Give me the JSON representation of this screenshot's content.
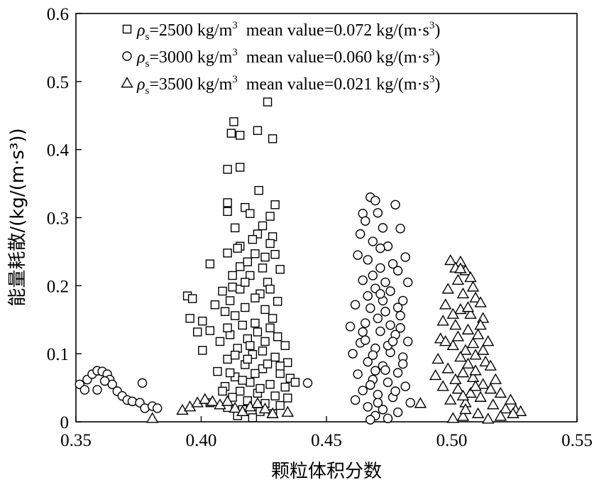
{
  "chart_data": {
    "type": "scatter",
    "xlabel": "颗粒体积分数",
    "ylabel": "能量耗散/(kg/(m·s³))",
    "xlim": [
      0.35,
      0.55
    ],
    "ylim": [
      0,
      0.6
    ],
    "x_ticks": [
      "0.35",
      "0.40",
      "0.45",
      "0.50",
      "0.55"
    ],
    "y_ticks": [
      "0",
      "0.1",
      "0.2",
      "0.3",
      "0.4",
      "0.5",
      "0.6"
    ],
    "grid": false,
    "legend_position": "top",
    "legend": [
      {
        "symbol": "square",
        "rho": "ρ",
        "sub": "s",
        "text": "=2500 kg/m",
        "sup": "3",
        "mean": "mean value=0.072 kg/(m·s",
        "mean_sup": "3",
        "close": ")"
      },
      {
        "symbol": "circle",
        "rho": "ρ",
        "sub": "s",
        "text": "=3000 kg/m",
        "sup": "3",
        "mean": "mean value=0.060 kg/(m·s",
        "mean_sup": "3",
        "close": ")"
      },
      {
        "symbol": "triangle",
        "rho": "ρ",
        "sub": "s",
        "text": "=3500 kg/m",
        "sup": "3",
        "mean": "mean value=0.021 kg/(m·s",
        "mean_sup": "3",
        "close": ")"
      }
    ],
    "series": [
      {
        "name": "ρs=2500 kg/m3",
        "marker": "square",
        "points": [
          [
            0.4265,
            0.47
          ],
          [
            0.413,
            0.441
          ],
          [
            0.4225,
            0.428
          ],
          [
            0.4285,
            0.416
          ],
          [
            0.412,
            0.424
          ],
          [
            0.4155,
            0.421
          ],
          [
            0.4155,
            0.374
          ],
          [
            0.4105,
            0.371
          ],
          [
            0.423,
            0.34
          ],
          [
            0.4105,
            0.322
          ],
          [
            0.4295,
            0.319
          ],
          [
            0.4175,
            0.315
          ],
          [
            0.4275,
            0.302
          ],
          [
            0.4105,
            0.309
          ],
          [
            0.4195,
            0.306
          ],
          [
            0.4245,
            0.288
          ],
          [
            0.4135,
            0.285
          ],
          [
            0.4225,
            0.276
          ],
          [
            0.4285,
            0.272
          ],
          [
            0.4275,
            0.262
          ],
          [
            0.4155,
            0.258
          ],
          [
            0.4105,
            0.248
          ],
          [
            0.4215,
            0.247
          ],
          [
            0.4295,
            0.246
          ],
          [
            0.4035,
            0.232
          ],
          [
            0.4315,
            0.224
          ],
          [
            0.3945,
            0.185
          ],
          [
            0.3965,
            0.181
          ],
          [
            0.4155,
            0.228
          ],
          [
            0.4195,
            0.215
          ],
          [
            0.4265,
            0.205
          ],
          [
            0.4125,
            0.198
          ],
          [
            0.4085,
            0.192
          ],
          [
            0.4235,
            0.188
          ],
          [
            0.4305,
            0.177
          ],
          [
            0.4055,
            0.172
          ],
          [
            0.4175,
            0.168
          ],
          [
            0.3955,
            0.152
          ],
          [
            0.4005,
            0.148
          ],
          [
            0.4135,
            0.156
          ],
          [
            0.4215,
            0.145
          ],
          [
            0.4275,
            0.138
          ],
          [
            0.4035,
            0.134
          ],
          [
            0.3985,
            0.132
          ],
          [
            0.4115,
            0.128
          ],
          [
            0.4185,
            0.122
          ],
          [
            0.4255,
            0.118
          ],
          [
            0.4335,
            0.112
          ],
          [
            0.4075,
            0.118
          ],
          [
            0.4005,
            0.105
          ],
          [
            0.4145,
            0.108
          ],
          [
            0.4205,
            0.099
          ],
          [
            0.4295,
            0.095
          ],
          [
            0.4345,
            0.087
          ],
          [
            0.4105,
            0.092
          ],
          [
            0.4175,
            0.084
          ],
          [
            0.4245,
            0.078
          ],
          [
            0.4315,
            0.071
          ],
          [
            0.4065,
            0.074
          ],
          [
            0.4355,
            0.064
          ],
          [
            0.4135,
            0.066
          ],
          [
            0.4195,
            0.058
          ],
          [
            0.4275,
            0.055
          ],
          [
            0.4335,
            0.051
          ],
          [
            0.4095,
            0.052
          ],
          [
            0.4155,
            0.045
          ],
          [
            0.4225,
            0.042
          ],
          [
            0.4295,
            0.038
          ],
          [
            0.4125,
            0.036
          ],
          [
            0.4185,
            0.031
          ],
          [
            0.4255,
            0.027
          ],
          [
            0.4315,
            0.024
          ],
          [
            0.4105,
            0.021
          ],
          [
            0.4165,
            0.018
          ],
          [
            0.4235,
            0.015
          ],
          [
            0.4285,
            0.012
          ],
          [
            0.4145,
            0.009
          ],
          [
            0.4205,
            0.006
          ],
          [
            0.4125,
            0.215
          ],
          [
            0.4185,
            0.235
          ],
          [
            0.4245,
            0.226
          ],
          [
            0.4115,
            0.178
          ],
          [
            0.4255,
            0.165
          ],
          [
            0.4165,
            0.142
          ],
          [
            0.4225,
            0.132
          ],
          [
            0.4095,
            0.162
          ],
          [
            0.4285,
            0.152
          ],
          [
            0.4195,
            0.112
          ],
          [
            0.4135,
            0.098
          ],
          [
            0.4265,
            0.085
          ],
          [
            0.4215,
            0.071
          ],
          [
            0.4165,
            0.061
          ],
          [
            0.4235,
            0.049
          ],
          [
            0.4185,
            0.092
          ],
          [
            0.4245,
            0.104
          ],
          [
            0.4105,
            0.138
          ],
          [
            0.4305,
            0.125
          ],
          [
            0.4155,
            0.195
          ],
          [
            0.4215,
            0.182
          ],
          [
            0.4275,
            0.195
          ],
          [
            0.4145,
            0.255
          ],
          [
            0.4205,
            0.268
          ],
          [
            0.4255,
            0.242
          ],
          [
            0.4175,
            0.205
          ],
          [
            0.4115,
            0.072
          ],
          [
            0.4315,
            0.082
          ],
          [
            0.4085,
            0.045
          ],
          [
            0.4345,
            0.035
          ],
          [
            0.4035,
            0.028
          ],
          [
            0.4375,
            0.058
          ]
        ]
      },
      {
        "name": "ρs=3000 kg/m3",
        "marker": "circle",
        "points": [
          [
            0.3515,
            0.055
          ],
          [
            0.3535,
            0.047
          ],
          [
            0.3545,
            0.062
          ],
          [
            0.3565,
            0.07
          ],
          [
            0.3585,
            0.075
          ],
          [
            0.3605,
            0.074
          ],
          [
            0.3625,
            0.07
          ],
          [
            0.3635,
            0.062
          ],
          [
            0.3645,
            0.055
          ],
          [
            0.3665,
            0.045
          ],
          [
            0.3685,
            0.038
          ],
          [
            0.3705,
            0.032
          ],
          [
            0.3725,
            0.03
          ],
          [
            0.3755,
            0.028
          ],
          [
            0.3775,
            0.02
          ],
          [
            0.3805,
            0.023
          ],
          [
            0.3825,
            0.02
          ],
          [
            0.3765,
            0.057
          ],
          [
            0.3585,
            0.047
          ],
          [
            0.3615,
            0.06
          ],
          [
            0.4425,
            0.057
          ],
          [
            0.4675,
            0.33
          ],
          [
            0.4695,
            0.325
          ],
          [
            0.4645,
            0.306
          ],
          [
            0.4775,
            0.319
          ],
          [
            0.4705,
            0.307
          ],
          [
            0.4655,
            0.295
          ],
          [
            0.4725,
            0.285
          ],
          [
            0.4795,
            0.284
          ],
          [
            0.4635,
            0.276
          ],
          [
            0.4685,
            0.265
          ],
          [
            0.4745,
            0.258
          ],
          [
            0.4815,
            0.242
          ],
          [
            0.4625,
            0.245
          ],
          [
            0.4665,
            0.238
          ],
          [
            0.4715,
            0.226
          ],
          [
            0.4785,
            0.222
          ],
          [
            0.4825,
            0.205
          ],
          [
            0.4645,
            0.208
          ],
          [
            0.4695,
            0.196
          ],
          [
            0.4755,
            0.192
          ],
          [
            0.4805,
            0.178
          ],
          [
            0.4615,
            0.172
          ],
          [
            0.4675,
            0.167
          ],
          [
            0.4735,
            0.162
          ],
          [
            0.4795,
            0.156
          ],
          [
            0.4595,
            0.14
          ],
          [
            0.4655,
            0.145
          ],
          [
            0.4715,
            0.133
          ],
          [
            0.4775,
            0.128
          ],
          [
            0.4825,
            0.118
          ],
          [
            0.4635,
            0.116
          ],
          [
            0.4695,
            0.108
          ],
          [
            0.4755,
            0.102
          ],
          [
            0.4605,
            0.1
          ],
          [
            0.4805,
            0.095
          ],
          [
            0.4665,
            0.088
          ],
          [
            0.4725,
            0.082
          ],
          [
            0.4785,
            0.072
          ],
          [
            0.4625,
            0.07
          ],
          [
            0.4685,
            0.062
          ],
          [
            0.4745,
            0.058
          ],
          [
            0.4815,
            0.052
          ],
          [
            0.4645,
            0.046
          ],
          [
            0.4705,
            0.04
          ],
          [
            0.4765,
            0.036
          ],
          [
            0.4615,
            0.032
          ],
          [
            0.4835,
            0.028
          ],
          [
            0.4665,
            0.022
          ],
          [
            0.4725,
            0.018
          ],
          [
            0.4785,
            0.014
          ],
          [
            0.4695,
            0.009
          ],
          [
            0.4745,
            0.005
          ],
          [
            0.4675,
            0.003
          ],
          [
            0.4715,
            0.255
          ],
          [
            0.4765,
            0.232
          ],
          [
            0.4685,
            0.215
          ],
          [
            0.4735,
            0.205
          ],
          [
            0.4665,
            0.185
          ],
          [
            0.4725,
            0.178
          ],
          [
            0.4785,
            0.168
          ],
          [
            0.4705,
            0.152
          ],
          [
            0.4755,
            0.142
          ],
          [
            0.4645,
            0.132
          ],
          [
            0.4745,
            0.112
          ],
          [
            0.4685,
            0.098
          ],
          [
            0.4805,
            0.085
          ],
          [
            0.4735,
            0.076
          ],
          [
            0.4675,
            0.054
          ],
          [
            0.4775,
            0.045
          ],
          [
            0.4705,
            0.028
          ],
          [
            0.4655,
            0.12
          ],
          [
            0.4795,
            0.138
          ],
          [
            0.4715,
            0.188
          ],
          [
            0.4765,
            0.118
          ],
          [
            0.4695,
            0.075
          ]
        ]
      },
      {
        "name": "ρs=3500 kg/m3",
        "marker": "triangle",
        "points": [
          [
            0.3805,
            0.005
          ],
          [
            0.3925,
            0.017
          ],
          [
            0.3955,
            0.022
          ],
          [
            0.3985,
            0.028
          ],
          [
            0.4015,
            0.033
          ],
          [
            0.4045,
            0.03
          ],
          [
            0.4075,
            0.025
          ],
          [
            0.4105,
            0.03
          ],
          [
            0.4135,
            0.02
          ],
          [
            0.4165,
            0.015
          ],
          [
            0.4195,
            0.022
          ],
          [
            0.4225,
            0.027
          ],
          [
            0.4255,
            0.019
          ],
          [
            0.4285,
            0.012
          ],
          [
            0.4345,
            0.014
          ],
          [
            0.4875,
            0.027
          ],
          [
            0.4995,
            0.237
          ],
          [
            0.5035,
            0.235
          ],
          [
            0.5015,
            0.226
          ],
          [
            0.5055,
            0.222
          ],
          [
            0.5075,
            0.212
          ],
          [
            0.5025,
            0.208
          ],
          [
            0.5085,
            0.198
          ],
          [
            0.4985,
            0.195
          ],
          [
            0.5045,
            0.188
          ],
          [
            0.5095,
            0.182
          ],
          [
            0.5115,
            0.175
          ],
          [
            0.4975,
            0.172
          ],
          [
            0.5035,
            0.165
          ],
          [
            0.5075,
            0.158
          ],
          [
            0.5125,
            0.152
          ],
          [
            0.4965,
            0.148
          ],
          [
            0.5015,
            0.142
          ],
          [
            0.5065,
            0.135
          ],
          [
            0.5105,
            0.128
          ],
          [
            0.4955,
            0.122
          ],
          [
            0.5145,
            0.118
          ],
          [
            0.5005,
            0.112
          ],
          [
            0.5055,
            0.105
          ],
          [
            0.5095,
            0.098
          ],
          [
            0.4945,
            0.092
          ],
          [
            0.5135,
            0.088
          ],
          [
            0.5155,
            0.082
          ],
          [
            0.4985,
            0.078
          ],
          [
            0.5045,
            0.072
          ],
          [
            0.5085,
            0.065
          ],
          [
            0.4935,
            0.068
          ],
          [
            0.5175,
            0.062
          ],
          [
            0.5125,
            0.055
          ],
          [
            0.4965,
            0.052
          ],
          [
            0.5025,
            0.048
          ],
          [
            0.5075,
            0.042
          ],
          [
            0.5195,
            0.042
          ],
          [
            0.5115,
            0.036
          ],
          [
            0.4995,
            0.032
          ],
          [
            0.5055,
            0.028
          ],
          [
            0.5235,
            0.032
          ],
          [
            0.5165,
            0.025
          ],
          [
            0.5215,
            0.019
          ],
          [
            0.5255,
            0.017
          ],
          [
            0.5275,
            0.015
          ],
          [
            0.5105,
            0.012
          ],
          [
            0.5045,
            0.008
          ],
          [
            0.5005,
            0.005
          ],
          [
            0.5145,
            0.004
          ],
          [
            0.5245,
            0.012
          ],
          [
            0.5195,
            0.008
          ],
          [
            0.5035,
            0.225
          ],
          [
            0.5065,
            0.168
          ],
          [
            0.5005,
            0.158
          ],
          [
            0.5115,
            0.142
          ],
          [
            0.5025,
            0.125
          ],
          [
            0.5085,
            0.115
          ],
          [
            0.5035,
            0.095
          ],
          [
            0.5125,
            0.105
          ],
          [
            0.5065,
            0.085
          ],
          [
            0.5015,
            0.062
          ],
          [
            0.5095,
            0.052
          ],
          [
            0.5045,
            0.038
          ],
          [
            0.5155,
            0.048
          ],
          [
            0.4975,
            0.118
          ],
          [
            0.5095,
            0.075
          ],
          [
            0.5055,
            0.018
          ]
        ]
      }
    ]
  }
}
